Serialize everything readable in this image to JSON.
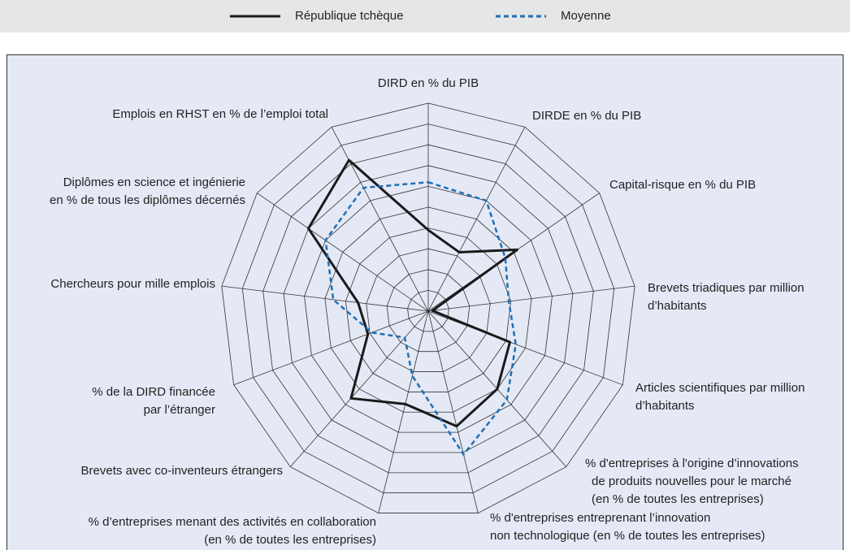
{
  "chart_data": {
    "type": "radar",
    "categories": [
      [
        "DIRD en % du PIB"
      ],
      [
        "DIRDE en % du PIB"
      ],
      [
        "Capital-risque en % du PIB"
      ],
      [
        "Brevets triadiques par million",
        "d’habitants"
      ],
      [
        "Articles scientifiques par million",
        "d’habitants"
      ],
      [
        "% d'entreprises à l'origine d’innovations",
        "de produits nouvelles pour le marché",
        "(en % de toutes les entreprises)"
      ],
      [
        "% d'entreprises entreprenant l’innovation",
        "non technologique (en % de toutes les entreprises)"
      ],
      [
        "% d’entreprises menant des activités en collaboration",
        "(en % de toutes les entreprises)"
      ],
      [
        "Brevets avec co-inventeurs étrangers"
      ],
      [
        "% de la DIRD financée",
        "par l’étranger"
      ],
      [
        "Chercheurs pour mille emplois"
      ],
      [
        "Diplômes en science et ingénierie",
        "en % de tous les diplômes décernés"
      ],
      [
        "Emplois en RHST en % de l’emploi total"
      ]
    ],
    "series": [
      {
        "name": "République tchèque",
        "color": "#1a1a1a",
        "dash": false,
        "values": [
          3.9,
          3.2,
          5.2,
          0.2,
          4.2,
          5.0,
          5.7,
          4.6,
          5.6,
          3.1,
          3.4,
          7.0,
          8.2
        ]
      },
      {
        "name": "Moyenne",
        "color": "#1f6fb5",
        "dash": true,
        "values": [
          6.2,
          6.0,
          4.5,
          3.9,
          4.5,
          5.7,
          7.1,
          3.2,
          1.7,
          2.9,
          4.6,
          6.0,
          6.7
        ]
      }
    ],
    "ylim": [
      0,
      10
    ],
    "yticks": [
      0,
      1,
      2,
      3,
      4,
      5,
      6,
      7,
      8,
      9,
      10
    ]
  }
}
